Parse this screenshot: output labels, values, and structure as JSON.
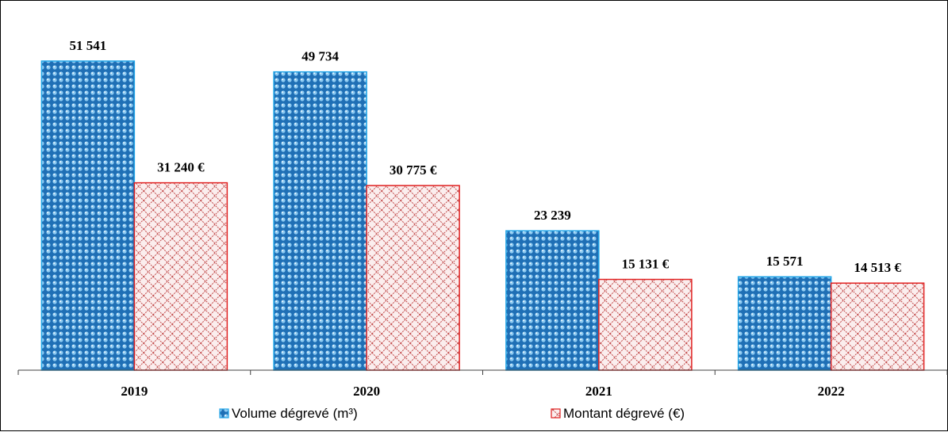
{
  "chart_data": {
    "type": "bar",
    "categories": [
      "2019",
      "2020",
      "2021",
      "2022"
    ],
    "series": [
      {
        "name": "Volume dégrevé (m³)",
        "values": [
          51541,
          49734,
          23239,
          15571
        ],
        "labels": [
          "51 541",
          "49 734",
          "23 239",
          "15 571"
        ],
        "color": "#1f6fb5"
      },
      {
        "name": "Montant dégrevé  (€)",
        "values": [
          31240,
          30775,
          15131,
          14513
        ],
        "labels": [
          "31 240 €",
          "30 775 €",
          "15 131 €",
          "14 513 €"
        ],
        "color": "#e02020"
      }
    ],
    "ylim": [
      0,
      57000
    ],
    "grid": false,
    "legend_position": "bottom"
  }
}
